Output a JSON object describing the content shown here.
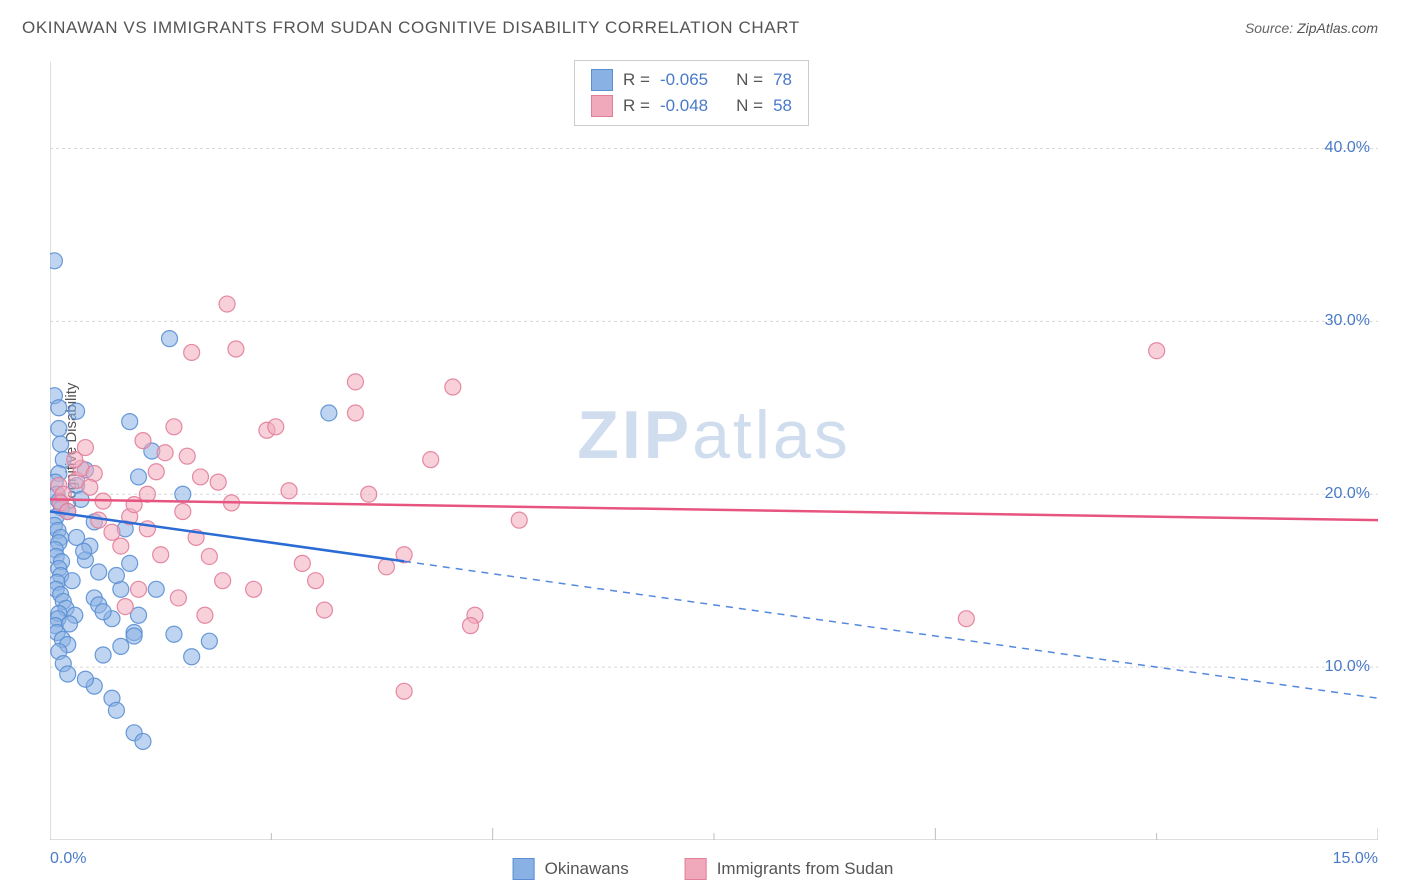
{
  "title": "OKINAWAN VS IMMIGRANTS FROM SUDAN COGNITIVE DISABILITY CORRELATION CHART",
  "source_prefix": "Source: ",
  "source_link": "ZipAtlas.com",
  "y_axis_label": "Cognitive Disability",
  "watermark_a": "ZIP",
  "watermark_b": "atlas",
  "chart": {
    "type": "scatter",
    "xlim": [
      0,
      15
    ],
    "ylim": [
      0,
      45
    ],
    "x_ticks_major": [
      0,
      5,
      10,
      15
    ],
    "x_ticks_minor": [
      2.5,
      7.5,
      12.5
    ],
    "x_tick_labels": [
      "0.0%",
      "15.0%"
    ],
    "y_ticks": [
      10,
      20,
      30,
      40
    ],
    "y_tick_labels": [
      "10.0%",
      "20.0%",
      "30.0%",
      "40.0%"
    ],
    "grid_color": "#d7d7d7",
    "grid_dash": "3,3",
    "border_color": "#bdbdbd",
    "background_color": "#ffffff",
    "marker_radius": 8,
    "marker_opacity": 0.55,
    "marker_stroke_opacity": 0.9,
    "series": [
      {
        "name": "Okinawans",
        "color_fill": "#8ab1e4",
        "color_stroke": "#5a8fd4",
        "line_color": "#2b6bd4",
        "line_width": 2.5,
        "trend": {
          "x0": 0,
          "y0": 19.0,
          "x1": 15,
          "y1": 8.2,
          "solid_until_x": 4.0
        },
        "r": "-0.065",
        "n": "78",
        "points": [
          [
            0.05,
            33.5
          ],
          [
            0.05,
            25.7
          ],
          [
            0.1,
            25.0
          ],
          [
            0.1,
            23.8
          ],
          [
            0.12,
            22.9
          ],
          [
            0.15,
            22.0
          ],
          [
            0.1,
            21.2
          ],
          [
            0.06,
            20.7
          ],
          [
            0.08,
            20.0
          ],
          [
            0.1,
            19.6
          ],
          [
            0.13,
            19.2
          ],
          [
            0.07,
            18.7
          ],
          [
            0.05,
            18.2
          ],
          [
            0.09,
            17.9
          ],
          [
            0.12,
            17.5
          ],
          [
            0.1,
            17.2
          ],
          [
            0.06,
            16.8
          ],
          [
            0.07,
            16.4
          ],
          [
            0.13,
            16.1
          ],
          [
            0.1,
            15.7
          ],
          [
            0.12,
            15.3
          ],
          [
            0.08,
            14.9
          ],
          [
            0.07,
            14.5
          ],
          [
            0.12,
            14.2
          ],
          [
            0.15,
            13.8
          ],
          [
            0.18,
            13.4
          ],
          [
            0.1,
            13.1
          ],
          [
            0.09,
            12.8
          ],
          [
            0.06,
            12.4
          ],
          [
            0.08,
            12.0
          ],
          [
            0.14,
            11.6
          ],
          [
            0.2,
            11.3
          ],
          [
            0.1,
            10.9
          ],
          [
            0.6,
            10.7
          ],
          [
            0.3,
            20.5
          ],
          [
            0.4,
            21.4
          ],
          [
            0.35,
            19.7
          ],
          [
            0.5,
            18.4
          ],
          [
            0.45,
            17.0
          ],
          [
            0.55,
            15.5
          ],
          [
            0.4,
            16.2
          ],
          [
            0.38,
            16.7
          ],
          [
            0.3,
            17.5
          ],
          [
            0.5,
            14.0
          ],
          [
            0.55,
            13.6
          ],
          [
            0.7,
            12.8
          ],
          [
            0.6,
            13.2
          ],
          [
            0.8,
            14.5
          ],
          [
            0.75,
            15.3
          ],
          [
            0.9,
            16.0
          ],
          [
            0.85,
            18.0
          ],
          [
            0.95,
            12.0
          ],
          [
            1.0,
            13.0
          ],
          [
            1.2,
            14.5
          ],
          [
            1.35,
            29.0
          ],
          [
            1.0,
            21.0
          ],
          [
            1.15,
            22.5
          ],
          [
            0.9,
            24.2
          ],
          [
            1.5,
            20.0
          ],
          [
            1.6,
            10.6
          ],
          [
            0.15,
            10.2
          ],
          [
            0.2,
            9.6
          ],
          [
            0.7,
            8.2
          ],
          [
            0.75,
            7.5
          ],
          [
            0.95,
            6.2
          ],
          [
            1.05,
            5.7
          ],
          [
            0.5,
            8.9
          ],
          [
            0.4,
            9.3
          ],
          [
            0.8,
            11.2
          ],
          [
            0.95,
            11.8
          ],
          [
            1.4,
            11.9
          ],
          [
            1.8,
            11.5
          ],
          [
            0.3,
            24.8
          ],
          [
            0.2,
            19.0
          ],
          [
            0.25,
            15.0
          ],
          [
            0.28,
            13.0
          ],
          [
            0.22,
            12.5
          ],
          [
            3.15,
            24.7
          ]
        ]
      },
      {
        "name": "Immigrants from Sudan",
        "color_fill": "#f0a9bb",
        "color_stroke": "#e27d9a",
        "line_color": "#e75480",
        "line_width": 2.5,
        "trend": {
          "x0": 0,
          "y0": 19.7,
          "x1": 15,
          "y1": 18.5,
          "solid_until_x": 15
        },
        "r": "-0.048",
        "n": "58",
        "points": [
          [
            0.1,
            20.5
          ],
          [
            0.15,
            20.0
          ],
          [
            0.12,
            19.5
          ],
          [
            0.2,
            19.0
          ],
          [
            0.3,
            20.8
          ],
          [
            0.35,
            21.5
          ],
          [
            0.28,
            22.0
          ],
          [
            0.4,
            22.7
          ],
          [
            0.5,
            21.2
          ],
          [
            0.45,
            20.4
          ],
          [
            0.6,
            19.6
          ],
          [
            0.55,
            18.5
          ],
          [
            0.7,
            17.8
          ],
          [
            0.8,
            17.0
          ],
          [
            0.9,
            18.7
          ],
          [
            0.95,
            19.4
          ],
          [
            1.1,
            20.0
          ],
          [
            1.2,
            21.3
          ],
          [
            1.3,
            22.4
          ],
          [
            1.05,
            23.1
          ],
          [
            1.4,
            23.9
          ],
          [
            1.55,
            22.2
          ],
          [
            1.7,
            21.0
          ],
          [
            1.5,
            19.0
          ],
          [
            1.65,
            17.5
          ],
          [
            1.8,
            16.4
          ],
          [
            1.95,
            15.0
          ],
          [
            1.6,
            28.2
          ],
          [
            2.1,
            28.4
          ],
          [
            1.1,
            18.0
          ],
          [
            1.25,
            16.5
          ],
          [
            1.45,
            14.0
          ],
          [
            1.0,
            14.5
          ],
          [
            0.85,
            13.5
          ],
          [
            1.75,
            13.0
          ],
          [
            2.3,
            14.5
          ],
          [
            2.45,
            23.7
          ],
          [
            2.55,
            23.9
          ],
          [
            2.7,
            20.2
          ],
          [
            2.85,
            16.0
          ],
          [
            3.0,
            15.0
          ],
          [
            3.1,
            13.3
          ],
          [
            2.0,
            31.0
          ],
          [
            3.45,
            26.5
          ],
          [
            3.45,
            24.7
          ],
          [
            3.6,
            20.0
          ],
          [
            3.8,
            15.8
          ],
          [
            4.0,
            16.5
          ],
          [
            4.3,
            22.0
          ],
          [
            4.55,
            26.2
          ],
          [
            4.8,
            13.0
          ],
          [
            5.3,
            18.5
          ],
          [
            4.0,
            8.6
          ],
          [
            4.75,
            12.4
          ],
          [
            10.35,
            12.8
          ],
          [
            12.5,
            28.3
          ],
          [
            2.05,
            19.5
          ],
          [
            1.9,
            20.7
          ]
        ]
      }
    ]
  },
  "stats_box": {
    "labels": {
      "r": "R =",
      "n": "N ="
    }
  },
  "legend": {
    "s1": "Okinawans",
    "s2": "Immigrants from Sudan"
  }
}
